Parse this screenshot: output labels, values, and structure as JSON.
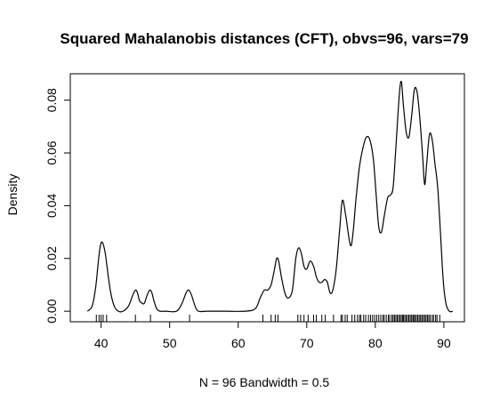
{
  "chart_data": {
    "type": "line",
    "title": "Squared Mahalanobis distances (CFT), obvs=96, vars=79",
    "xlabel": "N = 96   Bandwidth = 0.5",
    "ylabel": "Density",
    "xlim": [
      35.5,
      93
    ],
    "ylim": [
      -0.004,
      0.09
    ],
    "xticks": [
      "40",
      "50",
      "60",
      "70",
      "80",
      "90"
    ],
    "yticks": [
      "0.00",
      "0.02",
      "0.04",
      "0.06",
      "0.08"
    ],
    "grid": false,
    "legend": "none",
    "series": [
      {
        "x": [
          38.0,
          38.7,
          39.2,
          39.6,
          39.9,
          40.2,
          40.6,
          41.0,
          41.4,
          41.9,
          42.5,
          43.2,
          44.0,
          44.6,
          45.0,
          45.3,
          45.6,
          46.0,
          46.3,
          46.7,
          47.1,
          47.4,
          47.7,
          48.1,
          48.6,
          49.5,
          51.0,
          51.8,
          52.4,
          52.8,
          53.2,
          53.7,
          54.2,
          55.5,
          58.0,
          61.0,
          62.5,
          63.2,
          63.8,
          64.3,
          64.8,
          65.3,
          65.6,
          65.9,
          66.3,
          66.8,
          67.3,
          67.9,
          68.4,
          68.8,
          69.2,
          69.6,
          70.0,
          70.5,
          71.0,
          71.4,
          71.8,
          72.2,
          72.6,
          73.0,
          73.4,
          73.8,
          74.3,
          74.8,
          75.2,
          75.7,
          76.2,
          76.5,
          76.8,
          77.2,
          77.7,
          78.2,
          78.7,
          79.2,
          79.7,
          80.1,
          80.5,
          80.9,
          81.3,
          81.8,
          82.2,
          82.6,
          83.0,
          83.5,
          83.8,
          84.1,
          84.5,
          84.9,
          85.3,
          85.7,
          86.1,
          86.5,
          86.9,
          87.2,
          87.5,
          87.9,
          88.3,
          88.7,
          89.1,
          89.5,
          89.9,
          90.3,
          90.8,
          91.3
        ],
        "y": [
          0.0,
          0.002,
          0.009,
          0.019,
          0.025,
          0.026,
          0.022,
          0.014,
          0.007,
          0.002,
          0.0,
          0.0,
          0.002,
          0.006,
          0.008,
          0.007,
          0.004,
          0.003,
          0.003,
          0.006,
          0.008,
          0.007,
          0.004,
          0.001,
          0.0,
          0.0,
          0.0,
          0.003,
          0.007,
          0.008,
          0.006,
          0.002,
          0.0,
          0.0,
          0.0,
          0.0,
          0.001,
          0.005,
          0.008,
          0.008,
          0.01,
          0.016,
          0.02,
          0.019,
          0.013,
          0.007,
          0.005,
          0.008,
          0.02,
          0.024,
          0.022,
          0.017,
          0.016,
          0.019,
          0.017,
          0.013,
          0.011,
          0.011,
          0.012,
          0.011,
          0.007,
          0.008,
          0.016,
          0.031,
          0.042,
          0.036,
          0.027,
          0.025,
          0.031,
          0.043,
          0.055,
          0.062,
          0.066,
          0.065,
          0.058,
          0.045,
          0.032,
          0.03,
          0.036,
          0.043,
          0.044,
          0.047,
          0.062,
          0.082,
          0.087,
          0.078,
          0.068,
          0.066,
          0.074,
          0.084,
          0.083,
          0.073,
          0.059,
          0.048,
          0.056,
          0.067,
          0.065,
          0.056,
          0.047,
          0.03,
          0.012,
          0.003,
          0.0,
          0.0
        ]
      }
    ],
    "rug": [
      39.3,
      39.7,
      40.0,
      40.3,
      40.8,
      45.0,
      47.2,
      52.9,
      63.6,
      64.8,
      65.4,
      65.8,
      68.7,
      69.1,
      69.6,
      70.2,
      71.0,
      71.4,
      72.2,
      72.7,
      73.9,
      75.0,
      75.2,
      75.6,
      75.9,
      76.6,
      77.0,
      77.4,
      77.7,
      77.9,
      78.3,
      78.6,
      79.0,
      79.3,
      79.6,
      79.9,
      80.2,
      80.5,
      80.8,
      81.1,
      81.3,
      81.6,
      81.9,
      82.1,
      82.4,
      82.6,
      82.8,
      83.0,
      83.2,
      83.4,
      83.6,
      83.8,
      84.0,
      84.1,
      84.3,
      84.5,
      84.7,
      84.9,
      85.1,
      85.3,
      85.5,
      85.6,
      85.8,
      86.0,
      86.2,
      86.4,
      86.6,
      86.8,
      87.0,
      87.2,
      87.4,
      87.6,
      87.8,
      88.0,
      88.3,
      88.5,
      88.8,
      89.0,
      89.4
    ]
  }
}
